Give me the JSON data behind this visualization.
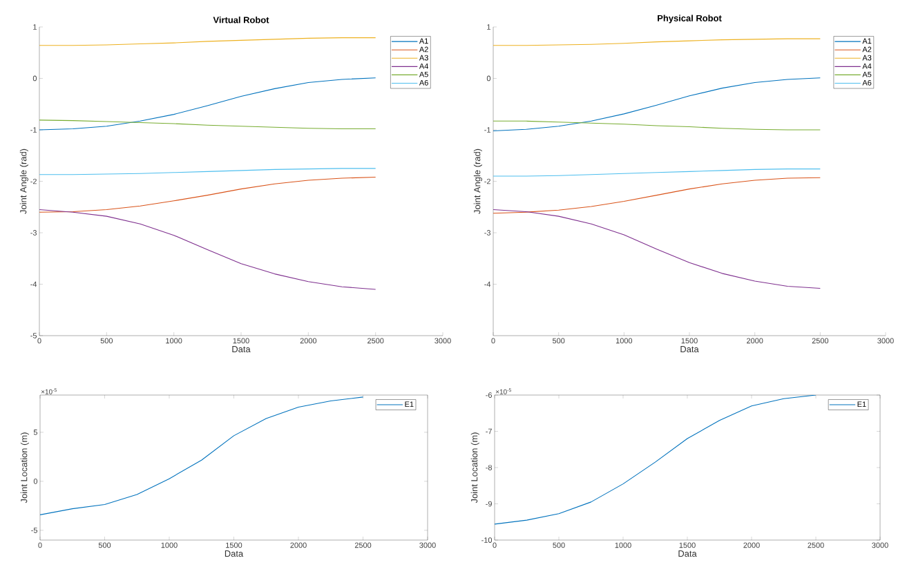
{
  "chart_data": [
    {
      "type": "line",
      "title": "Virtual Robot",
      "xlabel": "Data",
      "ylabel": "Joint Angle (rad)",
      "x": [
        0,
        250,
        500,
        750,
        1000,
        1250,
        1500,
        1750,
        2000,
        2250,
        2500
      ],
      "xlim": [
        0,
        3000
      ],
      "xticks": [
        0,
        500,
        1000,
        1500,
        2000,
        2500,
        3000
      ],
      "ylim": [
        -5,
        1
      ],
      "yticks": [
        -5,
        -4,
        -3,
        -2,
        -1,
        0,
        1
      ],
      "legend": "top right",
      "series": [
        {
          "name": "A1",
          "color": "#0072bd",
          "values": [
            -1.0,
            -0.98,
            -0.93,
            -0.83,
            -0.7,
            -0.53,
            -0.35,
            -0.2,
            -0.08,
            -0.02,
            0.01
          ]
        },
        {
          "name": "A2",
          "color": "#d95319",
          "values": [
            -2.6,
            -2.59,
            -2.55,
            -2.48,
            -2.38,
            -2.27,
            -2.15,
            -2.05,
            -1.98,
            -1.94,
            -1.92
          ]
        },
        {
          "name": "A3",
          "color": "#edb120",
          "values": [
            0.64,
            0.64,
            0.65,
            0.67,
            0.69,
            0.72,
            0.74,
            0.76,
            0.78,
            0.79,
            0.79
          ]
        },
        {
          "name": "A4",
          "color": "#7e2f8e",
          "values": [
            -2.55,
            -2.6,
            -2.68,
            -2.83,
            -3.05,
            -3.33,
            -3.6,
            -3.8,
            -3.95,
            -4.05,
            -4.1
          ]
        },
        {
          "name": "A5",
          "color": "#77ac30",
          "values": [
            -0.81,
            -0.82,
            -0.84,
            -0.86,
            -0.88,
            -0.91,
            -0.93,
            -0.95,
            -0.97,
            -0.98,
            -0.98
          ]
        },
        {
          "name": "A6",
          "color": "#4dbeee",
          "values": [
            -1.87,
            -1.87,
            -1.86,
            -1.85,
            -1.83,
            -1.81,
            -1.79,
            -1.77,
            -1.76,
            -1.75,
            -1.75
          ]
        }
      ]
    },
    {
      "type": "line",
      "title": "Physical Robot",
      "xlabel": "Data",
      "ylabel": "Joint Angle (rad)",
      "x": [
        0,
        250,
        500,
        750,
        1000,
        1250,
        1500,
        1750,
        2000,
        2250,
        2500
      ],
      "xlim": [
        0,
        3000
      ],
      "xticks": [
        0,
        500,
        1000,
        1500,
        2000,
        2500,
        3000
      ],
      "ylim": [
        -5,
        1
      ],
      "yticks": [
        -4,
        -3,
        -2,
        -1,
        0,
        1
      ],
      "legend": "top right",
      "series": [
        {
          "name": "A1",
          "color": "#0072bd",
          "values": [
            -1.02,
            -0.99,
            -0.93,
            -0.83,
            -0.69,
            -0.52,
            -0.34,
            -0.19,
            -0.08,
            -0.02,
            0.01
          ]
        },
        {
          "name": "A2",
          "color": "#d95319",
          "values": [
            -2.62,
            -2.6,
            -2.56,
            -2.49,
            -2.39,
            -2.27,
            -2.15,
            -2.05,
            -1.98,
            -1.94,
            -1.93
          ]
        },
        {
          "name": "A3",
          "color": "#edb120",
          "values": [
            0.64,
            0.64,
            0.65,
            0.66,
            0.68,
            0.71,
            0.73,
            0.75,
            0.76,
            0.77,
            0.77
          ]
        },
        {
          "name": "A4",
          "color": "#7e2f8e",
          "values": [
            -2.55,
            -2.59,
            -2.68,
            -2.83,
            -3.04,
            -3.32,
            -3.58,
            -3.79,
            -3.94,
            -4.04,
            -4.08
          ]
        },
        {
          "name": "A5",
          "color": "#77ac30",
          "values": [
            -0.83,
            -0.83,
            -0.85,
            -0.87,
            -0.89,
            -0.92,
            -0.94,
            -0.97,
            -0.99,
            -1.0,
            -1.0
          ]
        },
        {
          "name": "A6",
          "color": "#4dbeee",
          "values": [
            -1.9,
            -1.9,
            -1.89,
            -1.87,
            -1.85,
            -1.83,
            -1.81,
            -1.79,
            -1.77,
            -1.76,
            -1.76
          ]
        }
      ]
    },
    {
      "type": "line",
      "xlabel": "Data",
      "ylabel": "Joint Location (m)",
      "annotations": [
        "×10$^{-5}$"
      ],
      "x": [
        0,
        250,
        500,
        750,
        1000,
        1250,
        1500,
        1750,
        2000,
        2250,
        2500
      ],
      "xlim": [
        0,
        3000
      ],
      "xticks": [
        0,
        500,
        1000,
        1500,
        2000,
        2500,
        3000
      ],
      "ylim": [
        -6,
        8.8
      ],
      "yticks": [
        -5,
        0,
        5
      ],
      "legend": "top right",
      "series": [
        {
          "name": "E1",
          "color": "#0072bd",
          "values": [
            -3.42,
            -2.8,
            -2.37,
            -1.35,
            0.26,
            2.16,
            4.65,
            6.4,
            7.57,
            8.2,
            8.6
          ]
        }
      ]
    },
    {
      "type": "line",
      "xlabel": "Data",
      "ylabel": "Joint Location (m)",
      "annotations": [
        "×10$^{-5}$"
      ],
      "x": [
        0,
        250,
        500,
        750,
        1000,
        1250,
        1500,
        1750,
        2000,
        2250,
        2500
      ],
      "xlim": [
        0,
        3000
      ],
      "xticks": [
        0,
        500,
        1000,
        1500,
        2000,
        2500,
        3000
      ],
      "ylim": [
        -10,
        -6
      ],
      "yticks": [
        -10,
        -9,
        -8,
        -7,
        -6
      ],
      "legend": "top right",
      "series": [
        {
          "name": "E1",
          "color": "#0072bd",
          "values": [
            -9.56,
            -9.45,
            -9.27,
            -8.95,
            -8.45,
            -7.85,
            -7.2,
            -6.7,
            -6.3,
            -6.1,
            -6.0
          ]
        }
      ]
    }
  ]
}
